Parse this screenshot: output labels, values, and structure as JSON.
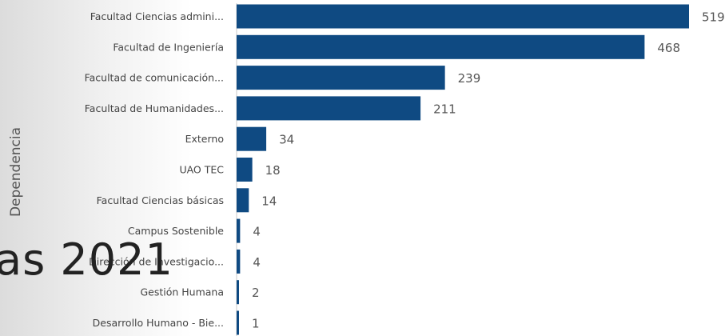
{
  "chart_data": {
    "type": "bar",
    "orientation": "horizontal",
    "ylabel": "Dependencia",
    "categories": [
      "Facultad Ciencias admini...",
      "Facultad de Ingeniería",
      "Facultad de comunicación...",
      "Facultad de Humanidades...",
      "Externo",
      "UAO TEC",
      "Facultad Ciencias básicas",
      "Campus Sostenible",
      "Dirección de Investigacio...",
      "Gestión Humana",
      "Desarrollo Humano - Bie..."
    ],
    "values": [
      519,
      468,
      239,
      211,
      34,
      18,
      14,
      4,
      4,
      2,
      1
    ],
    "xlim": [
      0,
      519
    ],
    "bar_color": "#0f4a82"
  },
  "overlay_text": "as 2021"
}
